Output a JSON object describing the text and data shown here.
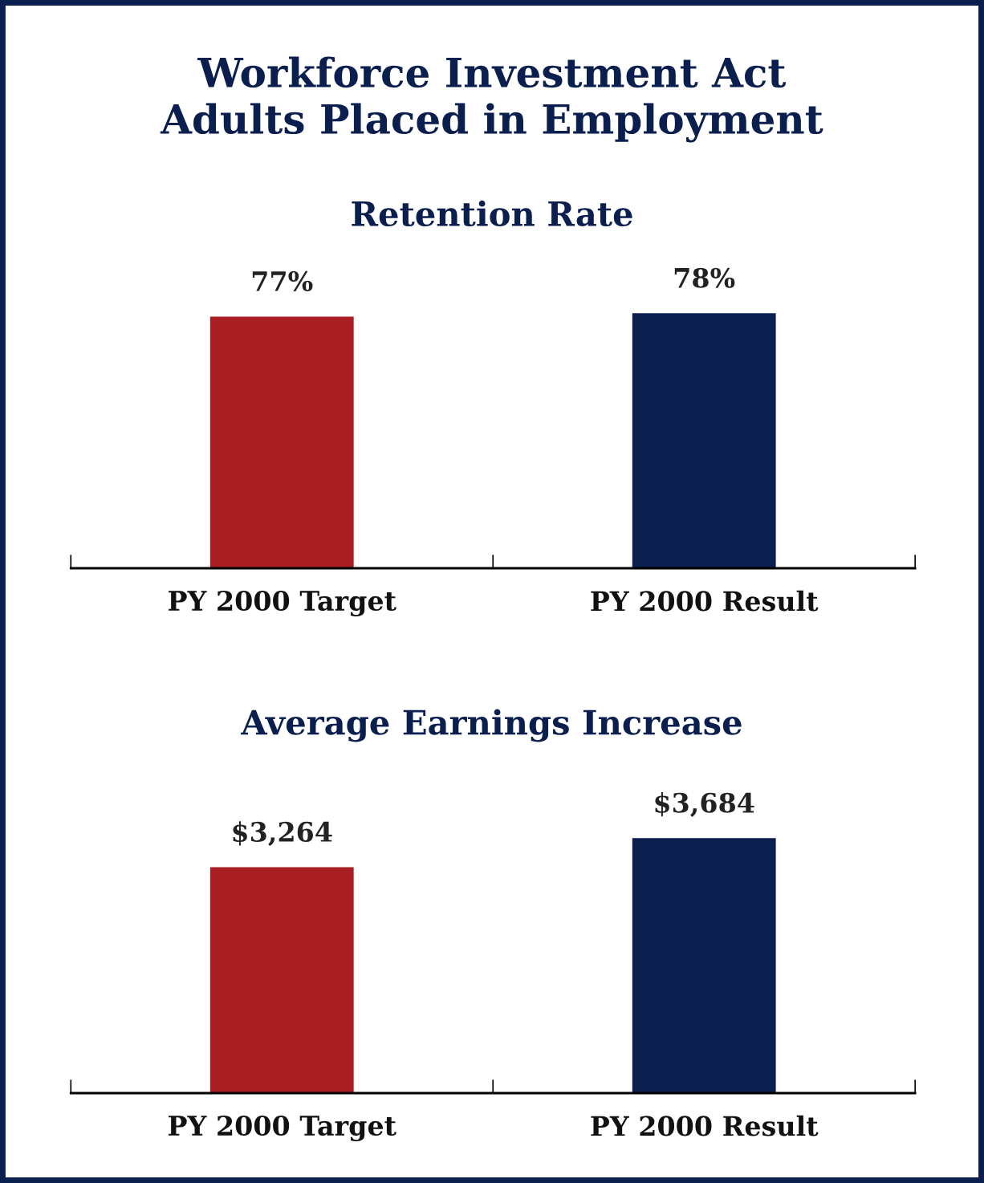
{
  "chart_data": [
    {
      "type": "bar",
      "title": "Workforce Investment Act\nAdults Placed in Employment",
      "subtitle": "Retention Rate",
      "categories": [
        "PY 2000 Target",
        "PY 2000 Result"
      ],
      "values": [
        77,
        78
      ],
      "colors": [
        "#a81e22",
        "#0b1f4f"
      ],
      "value_labels": [
        "77%",
        "78%"
      ],
      "grid": false,
      "legend": false
    },
    {
      "type": "bar",
      "subtitle": "Average Earnings Increase",
      "categories": [
        "PY 2000 Target",
        "PY 2000 Result"
      ],
      "values": [
        3264,
        3684
      ],
      "colors": [
        "#a81e22",
        "#0b1f4f"
      ],
      "value_labels": [
        "$3,264",
        "$3,684"
      ],
      "grid": false,
      "legend": false
    }
  ]
}
